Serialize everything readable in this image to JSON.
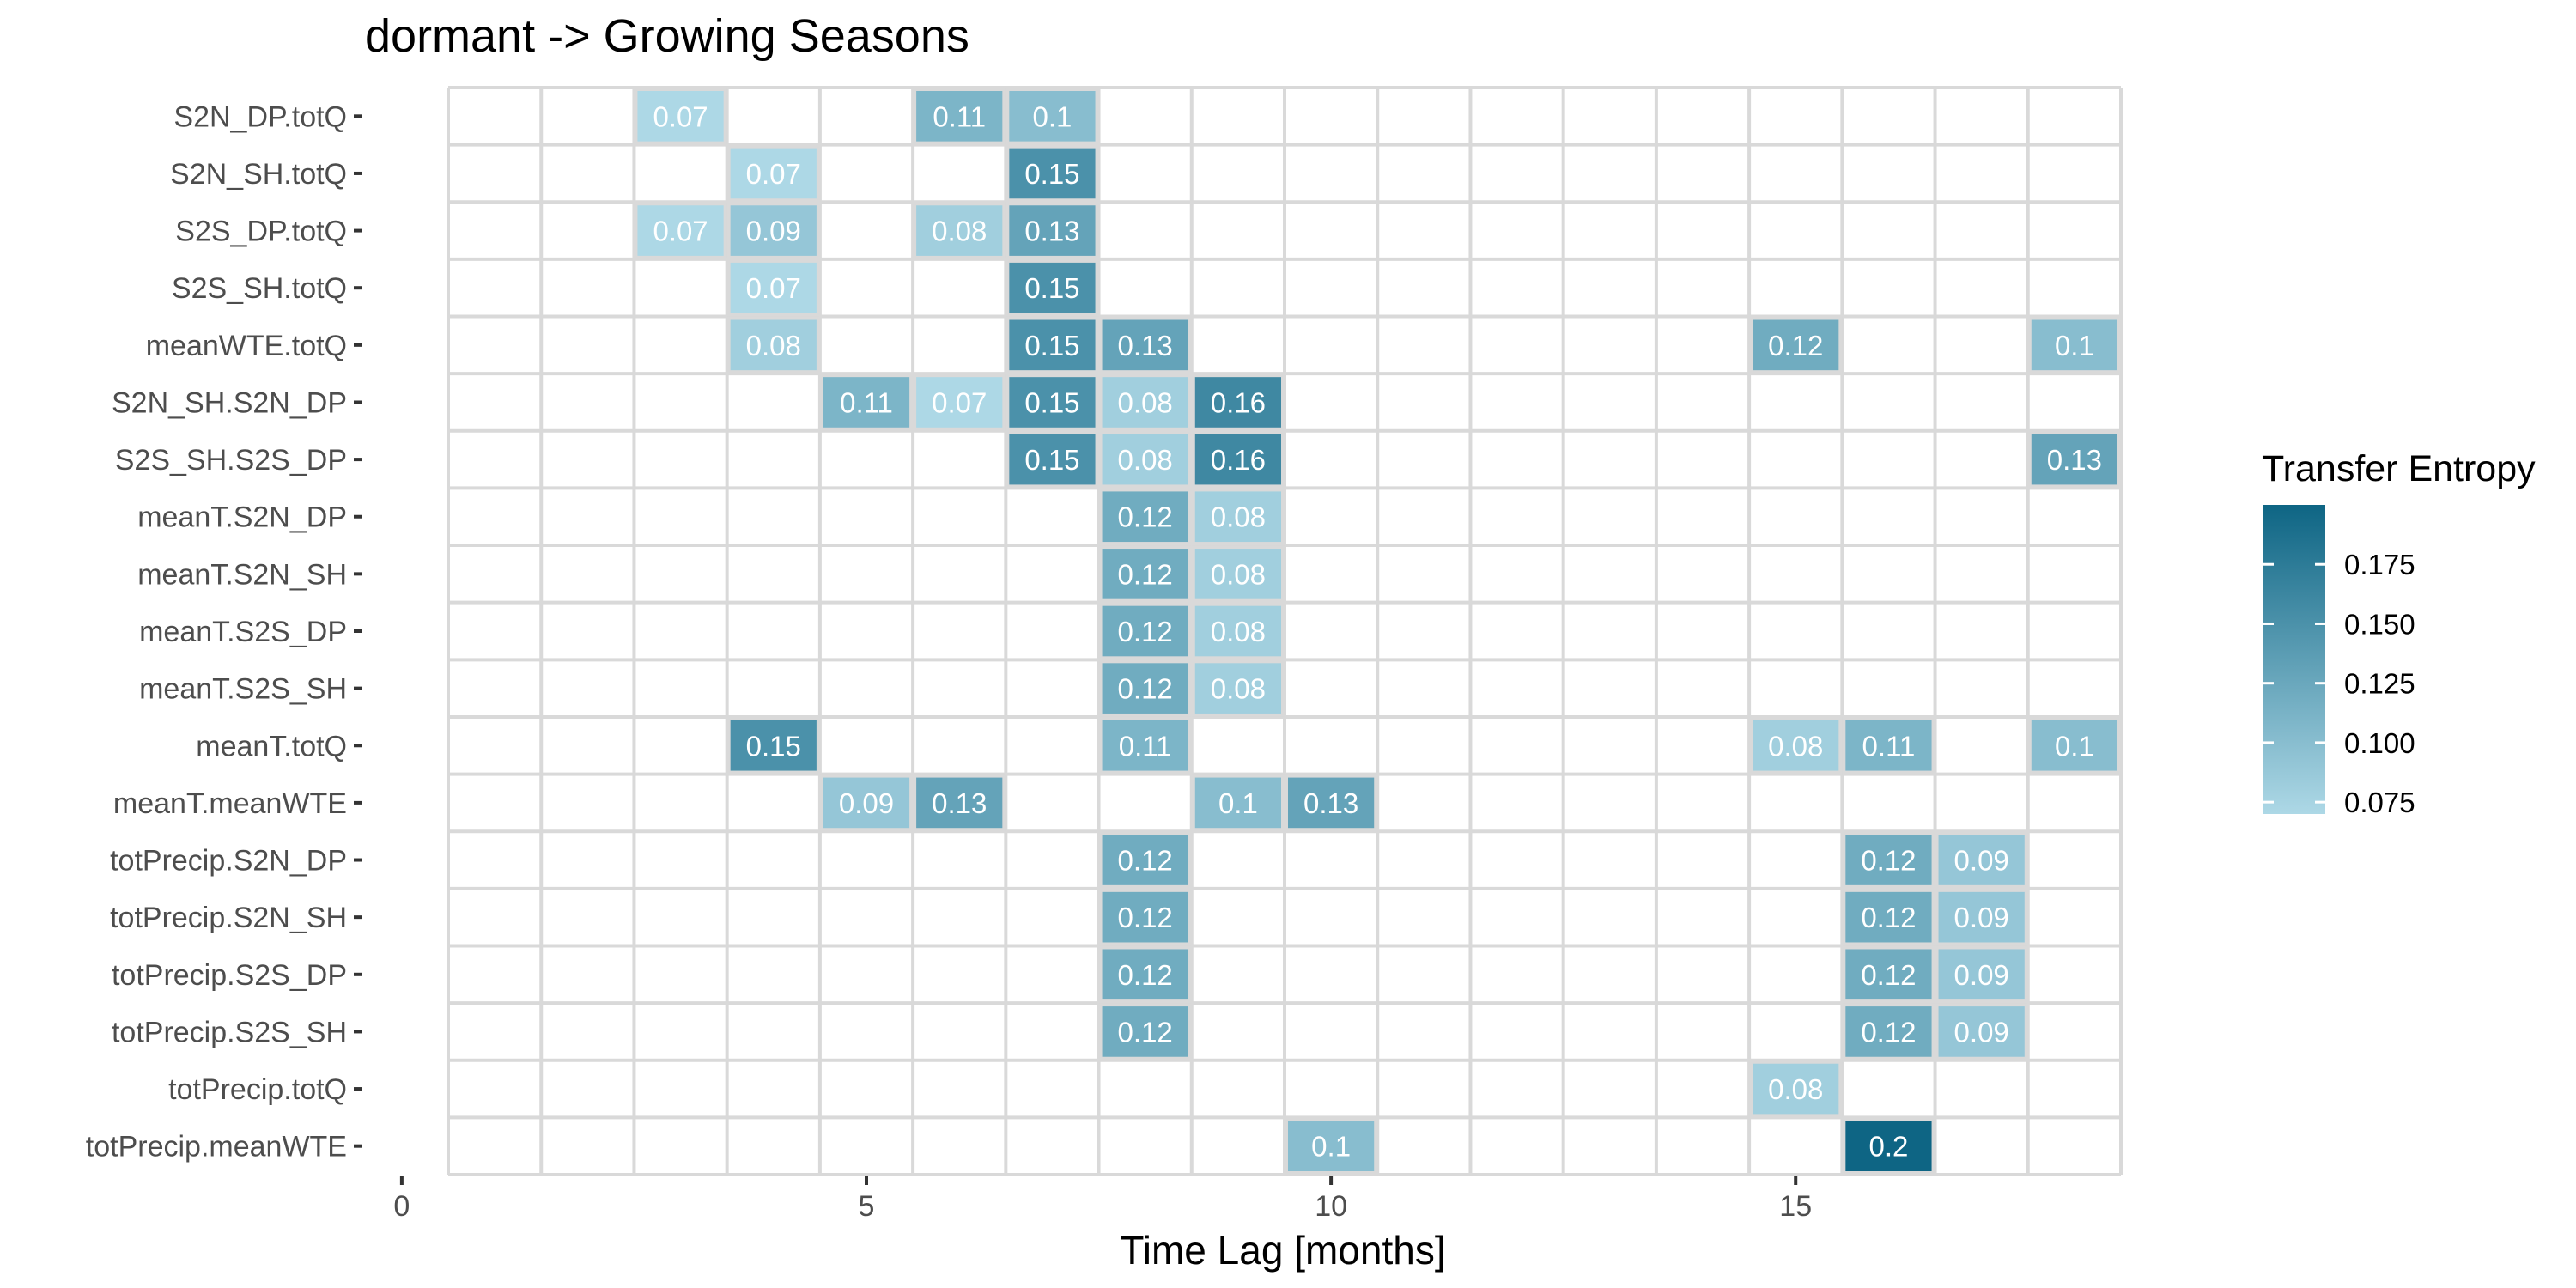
{
  "chart_data": {
    "type": "heatmap",
    "title": "dormant -> Growing Seasons",
    "xlabel": "Time Lag [months]",
    "ylabel": "",
    "xlim": [
      0.5,
      18.5
    ],
    "x_ticks": [
      0,
      5,
      10,
      15
    ],
    "rows": [
      "S2N_DP.totQ",
      "S2N_SH.totQ",
      "S2S_DP.totQ",
      "S2S_SH.totQ",
      "meanWTE.totQ",
      "S2N_SH.S2N_DP",
      "S2S_SH.S2S_DP",
      "meanT.S2N_DP",
      "meanT.S2N_SH",
      "meanT.S2S_DP",
      "meanT.S2S_SH",
      "meanT.totQ",
      "meanT.meanWTE",
      "totPrecip.S2N_DP",
      "totPrecip.S2N_SH",
      "totPrecip.S2S_DP",
      "totPrecip.S2S_SH",
      "totPrecip.totQ",
      "totPrecip.meanWTE"
    ],
    "cells": [
      {
        "row": "S2N_DP.totQ",
        "lag": 3,
        "value": 0.07,
        "label": "0.07"
      },
      {
        "row": "S2N_DP.totQ",
        "lag": 6,
        "value": 0.11,
        "label": "0.11"
      },
      {
        "row": "S2N_DP.totQ",
        "lag": 7,
        "value": 0.1,
        "label": "0.1"
      },
      {
        "row": "S2N_SH.totQ",
        "lag": 4,
        "value": 0.07,
        "label": "0.07"
      },
      {
        "row": "S2N_SH.totQ",
        "lag": 7,
        "value": 0.15,
        "label": "0.15"
      },
      {
        "row": "S2S_DP.totQ",
        "lag": 3,
        "value": 0.07,
        "label": "0.07"
      },
      {
        "row": "S2S_DP.totQ",
        "lag": 4,
        "value": 0.09,
        "label": "0.09"
      },
      {
        "row": "S2S_DP.totQ",
        "lag": 6,
        "value": 0.08,
        "label": "0.08"
      },
      {
        "row": "S2S_DP.totQ",
        "lag": 7,
        "value": 0.13,
        "label": "0.13"
      },
      {
        "row": "S2S_SH.totQ",
        "lag": 4,
        "value": 0.07,
        "label": "0.07"
      },
      {
        "row": "S2S_SH.totQ",
        "lag": 7,
        "value": 0.15,
        "label": "0.15"
      },
      {
        "row": "meanWTE.totQ",
        "lag": 4,
        "value": 0.08,
        "label": "0.08"
      },
      {
        "row": "meanWTE.totQ",
        "lag": 7,
        "value": 0.15,
        "label": "0.15"
      },
      {
        "row": "meanWTE.totQ",
        "lag": 8,
        "value": 0.13,
        "label": "0.13"
      },
      {
        "row": "meanWTE.totQ",
        "lag": 15,
        "value": 0.12,
        "label": "0.12"
      },
      {
        "row": "meanWTE.totQ",
        "lag": 18,
        "value": 0.1,
        "label": "0.1"
      },
      {
        "row": "S2N_SH.S2N_DP",
        "lag": 5,
        "value": 0.11,
        "label": "0.11"
      },
      {
        "row": "S2N_SH.S2N_DP",
        "lag": 6,
        "value": 0.07,
        "label": "0.07"
      },
      {
        "row": "S2N_SH.S2N_DP",
        "lag": 7,
        "value": 0.15,
        "label": "0.15"
      },
      {
        "row": "S2N_SH.S2N_DP",
        "lag": 8,
        "value": 0.08,
        "label": "0.08"
      },
      {
        "row": "S2N_SH.S2N_DP",
        "lag": 9,
        "value": 0.16,
        "label": "0.16"
      },
      {
        "row": "S2S_SH.S2S_DP",
        "lag": 7,
        "value": 0.15,
        "label": "0.15"
      },
      {
        "row": "S2S_SH.S2S_DP",
        "lag": 8,
        "value": 0.08,
        "label": "0.08"
      },
      {
        "row": "S2S_SH.S2S_DP",
        "lag": 9,
        "value": 0.16,
        "label": "0.16"
      },
      {
        "row": "S2S_SH.S2S_DP",
        "lag": 18,
        "value": 0.13,
        "label": "0.13"
      },
      {
        "row": "meanT.S2N_DP",
        "lag": 8,
        "value": 0.12,
        "label": "0.12"
      },
      {
        "row": "meanT.S2N_DP",
        "lag": 9,
        "value": 0.08,
        "label": "0.08"
      },
      {
        "row": "meanT.S2N_SH",
        "lag": 8,
        "value": 0.12,
        "label": "0.12"
      },
      {
        "row": "meanT.S2N_SH",
        "lag": 9,
        "value": 0.08,
        "label": "0.08"
      },
      {
        "row": "meanT.S2S_DP",
        "lag": 8,
        "value": 0.12,
        "label": "0.12"
      },
      {
        "row": "meanT.S2S_DP",
        "lag": 9,
        "value": 0.08,
        "label": "0.08"
      },
      {
        "row": "meanT.S2S_SH",
        "lag": 8,
        "value": 0.12,
        "label": "0.12"
      },
      {
        "row": "meanT.S2S_SH",
        "lag": 9,
        "value": 0.08,
        "label": "0.08"
      },
      {
        "row": "meanT.totQ",
        "lag": 4,
        "value": 0.15,
        "label": "0.15"
      },
      {
        "row": "meanT.totQ",
        "lag": 8,
        "value": 0.11,
        "label": "0.11"
      },
      {
        "row": "meanT.totQ",
        "lag": 15,
        "value": 0.08,
        "label": "0.08"
      },
      {
        "row": "meanT.totQ",
        "lag": 16,
        "value": 0.11,
        "label": "0.11"
      },
      {
        "row": "meanT.totQ",
        "lag": 18,
        "value": 0.1,
        "label": "0.1"
      },
      {
        "row": "meanT.meanWTE",
        "lag": 5,
        "value": 0.09,
        "label": "0.09"
      },
      {
        "row": "meanT.meanWTE",
        "lag": 6,
        "value": 0.13,
        "label": "0.13"
      },
      {
        "row": "meanT.meanWTE",
        "lag": 9,
        "value": 0.1,
        "label": "0.1"
      },
      {
        "row": "meanT.meanWTE",
        "lag": 10,
        "value": 0.13,
        "label": "0.13"
      },
      {
        "row": "totPrecip.S2N_DP",
        "lag": 8,
        "value": 0.12,
        "label": "0.12"
      },
      {
        "row": "totPrecip.S2N_DP",
        "lag": 16,
        "value": 0.12,
        "label": "0.12"
      },
      {
        "row": "totPrecip.S2N_DP",
        "lag": 17,
        "value": 0.09,
        "label": "0.09"
      },
      {
        "row": "totPrecip.S2N_SH",
        "lag": 8,
        "value": 0.12,
        "label": "0.12"
      },
      {
        "row": "totPrecip.S2N_SH",
        "lag": 16,
        "value": 0.12,
        "label": "0.12"
      },
      {
        "row": "totPrecip.S2N_SH",
        "lag": 17,
        "value": 0.09,
        "label": "0.09"
      },
      {
        "row": "totPrecip.S2S_DP",
        "lag": 8,
        "value": 0.12,
        "label": "0.12"
      },
      {
        "row": "totPrecip.S2S_DP",
        "lag": 16,
        "value": 0.12,
        "label": "0.12"
      },
      {
        "row": "totPrecip.S2S_DP",
        "lag": 17,
        "value": 0.09,
        "label": "0.09"
      },
      {
        "row": "totPrecip.S2S_SH",
        "lag": 8,
        "value": 0.12,
        "label": "0.12"
      },
      {
        "row": "totPrecip.S2S_SH",
        "lag": 16,
        "value": 0.12,
        "label": "0.12"
      },
      {
        "row": "totPrecip.S2S_SH",
        "lag": 17,
        "value": 0.09,
        "label": "0.09"
      },
      {
        "row": "totPrecip.totQ",
        "lag": 15,
        "value": 0.08,
        "label": "0.08"
      },
      {
        "row": "totPrecip.meanWTE",
        "lag": 10,
        "value": 0.1,
        "label": "0.1"
      },
      {
        "row": "totPrecip.meanWTE",
        "lag": 16,
        "value": 0.2,
        "label": "0.2"
      }
    ],
    "legend": {
      "title": "Transfer Entropy",
      "position": "right",
      "ticks": [
        0.075,
        0.1,
        0.125,
        0.15,
        0.175
      ],
      "tick_labels": [
        "0.075",
        "0.100",
        "0.125",
        "0.150",
        "0.175"
      ],
      "range": [
        0.07,
        0.2
      ]
    },
    "colors": {
      "low": "#add8e6",
      "high": "#0e6584",
      "grid_line": "#d9d9d9",
      "cell_border": "#d9d9d9",
      "background": "#ffffff"
    }
  }
}
